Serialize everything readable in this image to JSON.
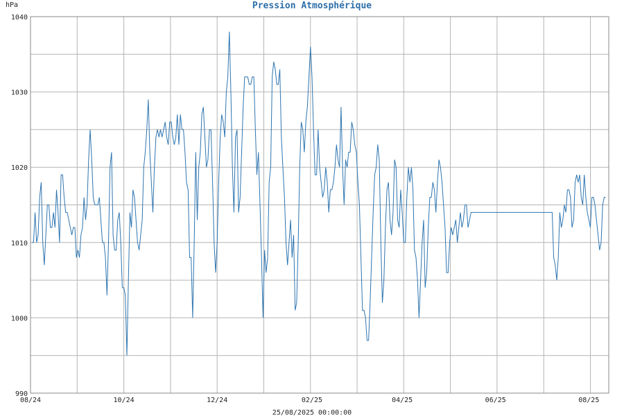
{
  "chart_data": {
    "type": "line",
    "title": "Pression Atmosphérique",
    "ylabel": "hPa",
    "footer": "25/08/2025 00:00:00",
    "ylim": [
      990,
      1040
    ],
    "yticks": [
      990,
      1000,
      1010,
      1020,
      1030,
      1040
    ],
    "x_range_days": [
      0,
      378
    ],
    "xticks": [
      {
        "label": "08/24",
        "day": 0
      },
      {
        "label": "10/24",
        "day": 61
      },
      {
        "label": "12/24",
        "day": 122
      },
      {
        "label": "02/25",
        "day": 184
      },
      {
        "label": "04/25",
        "day": 243
      },
      {
        "label": "06/25",
        "day": 304
      },
      {
        "label": "08/25",
        "day": 365
      }
    ],
    "grid": true,
    "series": [
      {
        "name": "",
        "color": "#2e75b0",
        "points": [
          [
            1,
            1010
          ],
          [
            2,
            1010
          ],
          [
            3,
            1014
          ],
          [
            4,
            1010
          ],
          [
            5,
            1011
          ],
          [
            6,
            1016
          ],
          [
            7,
            1018
          ],
          [
            8,
            1010
          ],
          [
            9,
            1007
          ],
          [
            10,
            1011
          ],
          [
            11,
            1015
          ],
          [
            12,
            1015
          ],
          [
            13,
            1012
          ],
          [
            14,
            1012
          ],
          [
            15,
            1014
          ],
          [
            16,
            1012
          ],
          [
            17,
            1017
          ],
          [
            18,
            1014
          ],
          [
            19,
            1010
          ],
          [
            20,
            1019
          ],
          [
            21,
            1019
          ],
          [
            22,
            1016
          ],
          [
            23,
            1014
          ],
          [
            24,
            1014
          ],
          [
            25,
            1013
          ],
          [
            26,
            1012
          ],
          [
            27,
            1011
          ],
          [
            28,
            1012
          ],
          [
            29,
            1012
          ],
          [
            30,
            1008
          ],
          [
            31,
            1009
          ],
          [
            32,
            1008
          ],
          [
            33,
            1011
          ],
          [
            34,
            1012
          ],
          [
            35,
            1016
          ],
          [
            36,
            1013
          ],
          [
            37,
            1015
          ],
          [
            38,
            1021
          ],
          [
            39,
            1025
          ],
          [
            40,
            1021
          ],
          [
            41,
            1016
          ],
          [
            42,
            1015
          ],
          [
            43,
            1015
          ],
          [
            44,
            1015
          ],
          [
            45,
            1016
          ],
          [
            46,
            1013
          ],
          [
            47,
            1010
          ],
          [
            48,
            1010
          ],
          [
            49,
            1008
          ],
          [
            50,
            1003
          ],
          [
            51,
            1010
          ],
          [
            52,
            1020
          ],
          [
            53,
            1022
          ],
          [
            54,
            1011
          ],
          [
            55,
            1009
          ],
          [
            56,
            1009
          ],
          [
            57,
            1013
          ],
          [
            58,
            1014
          ],
          [
            59,
            1010
          ],
          [
            60,
            1004
          ],
          [
            61,
            1004
          ],
          [
            62,
            1003
          ],
          [
            63,
            995
          ],
          [
            64,
            1005
          ],
          [
            65,
            1014
          ],
          [
            66,
            1012
          ],
          [
            67,
            1017
          ],
          [
            68,
            1016
          ],
          [
            69,
            1013
          ],
          [
            70,
            1010
          ],
          [
            71,
            1009
          ],
          [
            72,
            1011
          ],
          [
            73,
            1013
          ],
          [
            74,
            1020
          ],
          [
            75,
            1022
          ],
          [
            76,
            1025
          ],
          [
            77,
            1029
          ],
          [
            78,
            1022
          ],
          [
            79,
            1018
          ],
          [
            80,
            1014
          ],
          [
            81,
            1020
          ],
          [
            82,
            1024
          ],
          [
            83,
            1025
          ],
          [
            84,
            1024
          ],
          [
            85,
            1025
          ],
          [
            86,
            1024
          ],
          [
            87,
            1025
          ],
          [
            88,
            1026
          ],
          [
            89,
            1024
          ],
          [
            90,
            1023
          ],
          [
            91,
            1026
          ],
          [
            92,
            1026
          ],
          [
            93,
            1024
          ],
          [
            94,
            1023
          ],
          [
            95,
            1024
          ],
          [
            96,
            1027
          ],
          [
            97,
            1023
          ],
          [
            98,
            1027
          ],
          [
            99,
            1025
          ],
          [
            100,
            1025
          ],
          [
            101,
            1022
          ],
          [
            102,
            1018
          ],
          [
            103,
            1017
          ],
          [
            104,
            1008
          ],
          [
            105,
            1008
          ],
          [
            106,
            1000
          ],
          [
            107,
            1010
          ],
          [
            108,
            1022
          ],
          [
            109,
            1013
          ],
          [
            110,
            1020
          ],
          [
            111,
            1022
          ],
          [
            112,
            1027
          ],
          [
            113,
            1028
          ],
          [
            114,
            1024
          ],
          [
            115,
            1020
          ],
          [
            116,
            1021
          ],
          [
            117,
            1025
          ],
          [
            118,
            1025
          ],
          [
            119,
            1018
          ],
          [
            120,
            1010
          ],
          [
            121,
            1006
          ],
          [
            122,
            1010
          ],
          [
            123,
            1018
          ],
          [
            124,
            1024
          ],
          [
            125,
            1027
          ],
          [
            126,
            1026
          ],
          [
            127,
            1024
          ],
          [
            128,
            1030
          ],
          [
            129,
            1032
          ],
          [
            130,
            1038
          ],
          [
            131,
            1030
          ],
          [
            132,
            1020
          ],
          [
            133,
            1014
          ],
          [
            134,
            1024
          ],
          [
            135,
            1025
          ],
          [
            136,
            1014
          ],
          [
            137,
            1016
          ],
          [
            138,
            1022
          ],
          [
            139,
            1028
          ],
          [
            140,
            1032
          ],
          [
            141,
            1032
          ],
          [
            142,
            1032
          ],
          [
            143,
            1031
          ],
          [
            144,
            1031
          ],
          [
            145,
            1032
          ],
          [
            146,
            1032
          ],
          [
            147,
            1025
          ],
          [
            148,
            1019
          ],
          [
            149,
            1022
          ],
          [
            150,
            1015
          ],
          [
            151,
            1008
          ],
          [
            152,
            1000
          ],
          [
            153,
            1009
          ],
          [
            154,
            1006
          ],
          [
            155,
            1008
          ],
          [
            156,
            1018
          ],
          [
            157,
            1020
          ],
          [
            158,
            1032
          ],
          [
            159,
            1034
          ],
          [
            160,
            1033
          ],
          [
            161,
            1031
          ],
          [
            162,
            1031
          ],
          [
            163,
            1033
          ],
          [
            164,
            1024
          ],
          [
            165,
            1020
          ],
          [
            166,
            1016
          ],
          [
            167,
            1010
          ],
          [
            168,
            1007
          ],
          [
            169,
            1010
          ],
          [
            170,
            1013
          ],
          [
            171,
            1008
          ],
          [
            172,
            1011
          ],
          [
            173,
            1001
          ],
          [
            174,
            1002
          ],
          [
            175,
            1010
          ],
          [
            176,
            1020
          ],
          [
            177,
            1026
          ],
          [
            178,
            1025
          ],
          [
            179,
            1022
          ],
          [
            180,
            1026
          ],
          [
            181,
            1028
          ],
          [
            182,
            1032
          ],
          [
            183,
            1036
          ],
          [
            184,
            1032
          ],
          [
            185,
            1025
          ],
          [
            186,
            1019
          ],
          [
            187,
            1019
          ],
          [
            188,
            1025
          ],
          [
            189,
            1020
          ],
          [
            190,
            1018
          ],
          [
            191,
            1016
          ],
          [
            192,
            1017
          ],
          [
            193,
            1020
          ],
          [
            194,
            1018
          ],
          [
            195,
            1014
          ],
          [
            196,
            1017
          ],
          [
            197,
            1017
          ],
          [
            198,
            1018
          ],
          [
            199,
            1020
          ],
          [
            200,
            1023
          ],
          [
            201,
            1021
          ],
          [
            202,
            1020
          ],
          [
            203,
            1028
          ],
          [
            204,
            1020
          ],
          [
            205,
            1015
          ],
          [
            206,
            1021
          ],
          [
            207,
            1020
          ],
          [
            208,
            1022
          ],
          [
            209,
            1022
          ],
          [
            210,
            1026
          ],
          [
            211,
            1025
          ],
          [
            212,
            1023
          ],
          [
            213,
            1022
          ],
          [
            214,
            1018
          ],
          [
            215,
            1015
          ],
          [
            216,
            1008
          ],
          [
            217,
            1001
          ],
          [
            218,
            1001
          ],
          [
            219,
            1000
          ],
          [
            220,
            997
          ],
          [
            221,
            997
          ],
          [
            222,
            1002
          ],
          [
            223,
            1008
          ],
          [
            224,
            1014
          ],
          [
            225,
            1019
          ],
          [
            226,
            1020
          ],
          [
            227,
            1023
          ],
          [
            228,
            1021
          ],
          [
            229,
            1010
          ],
          [
            230,
            1002
          ],
          [
            231,
            1005
          ],
          [
            232,
            1012
          ],
          [
            233,
            1017
          ],
          [
            234,
            1018
          ],
          [
            235,
            1013
          ],
          [
            236,
            1011
          ],
          [
            237,
            1014
          ],
          [
            238,
            1021
          ],
          [
            239,
            1020
          ],
          [
            240,
            1013
          ],
          [
            241,
            1012
          ],
          [
            242,
            1017
          ],
          [
            243,
            1014
          ],
          [
            244,
            1010
          ],
          [
            245,
            1010
          ],
          [
            246,
            1016
          ],
          [
            247,
            1020
          ],
          [
            248,
            1018
          ],
          [
            249,
            1020
          ],
          [
            250,
            1017
          ],
          [
            251,
            1009
          ],
          [
            252,
            1008
          ],
          [
            253,
            1005
          ],
          [
            254,
            1000
          ],
          [
            255,
            1005
          ],
          [
            256,
            1010
          ],
          [
            257,
            1013
          ],
          [
            258,
            1004
          ],
          [
            259,
            1006
          ],
          [
            260,
            1012
          ],
          [
            261,
            1016
          ],
          [
            262,
            1016
          ],
          [
            263,
            1018
          ],
          [
            264,
            1017
          ],
          [
            265,
            1014
          ],
          [
            266,
            1018
          ],
          [
            267,
            1021
          ],
          [
            268,
            1020
          ],
          [
            269,
            1018
          ],
          [
            270,
            1015
          ],
          [
            271,
            1012
          ],
          [
            272,
            1006
          ],
          [
            273,
            1006
          ],
          [
            274,
            1010
          ],
          [
            275,
            1012
          ],
          [
            276,
            1011
          ],
          [
            277,
            1012
          ],
          [
            278,
            1013
          ],
          [
            279,
            1010
          ],
          [
            280,
            1012
          ],
          [
            281,
            1014
          ],
          [
            282,
            1012
          ],
          [
            283,
            1013
          ],
          [
            284,
            1015
          ],
          [
            285,
            1015
          ],
          [
            286,
            1012
          ],
          [
            287,
            1013
          ],
          [
            288,
            1014
          ],
          [
            289,
            1014
          ],
          [
            341,
            1014
          ],
          [
            342,
            1008
          ],
          [
            343,
            1007
          ],
          [
            344,
            1005
          ],
          [
            345,
            1008
          ],
          [
            346,
            1014
          ],
          [
            347,
            1012
          ],
          [
            348,
            1013
          ],
          [
            349,
            1015
          ],
          [
            350,
            1014
          ],
          [
            351,
            1017
          ],
          [
            352,
            1017
          ],
          [
            353,
            1016
          ],
          [
            354,
            1012
          ],
          [
            355,
            1013
          ],
          [
            356,
            1018
          ],
          [
            357,
            1019
          ],
          [
            358,
            1018
          ],
          [
            359,
            1019
          ],
          [
            360,
            1016
          ],
          [
            361,
            1015
          ],
          [
            362,
            1019
          ],
          [
            363,
            1016
          ],
          [
            364,
            1014
          ],
          [
            365,
            1013
          ],
          [
            366,
            1012
          ],
          [
            367,
            1016
          ],
          [
            368,
            1016
          ],
          [
            369,
            1015
          ],
          [
            370,
            1013
          ],
          [
            371,
            1011
          ],
          [
            372,
            1009
          ],
          [
            373,
            1010
          ],
          [
            374,
            1015
          ],
          [
            375,
            1016
          ],
          [
            376,
            1016
          ]
        ]
      }
    ]
  }
}
